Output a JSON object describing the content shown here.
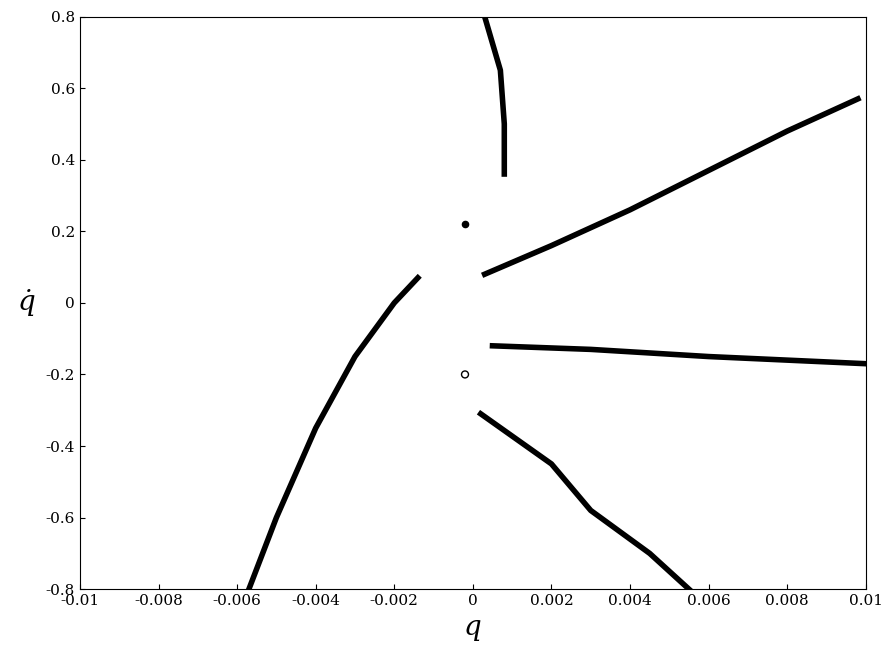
{
  "chart_data": {
    "type": "line",
    "x_label": "q",
    "y_label": "q̇",
    "xlim": [
      -0.01,
      0.01
    ],
    "ylim": [
      -0.8,
      0.8
    ],
    "xticks": [
      -0.01,
      -0.008,
      -0.006,
      -0.004,
      -0.002,
      0,
      0.002,
      0.004,
      0.006,
      0.008,
      0.01
    ],
    "yticks": [
      -0.8,
      -0.6,
      -0.4,
      -0.2,
      0,
      0.2,
      0.4,
      0.6,
      0.8
    ],
    "grid": false,
    "series": [
      {
        "type": "line",
        "color": "#000000",
        "line_style": "solid",
        "x": [
          -0.0057,
          -0.005,
          -0.004,
          -0.003,
          -0.002,
          -0.0014
        ],
        "values": [
          -0.8,
          -0.6,
          -0.35,
          -0.15,
          0.0,
          0.07
        ]
      },
      {
        "type": "line",
        "color": "#000000",
        "line_style": "solid",
        "x": [
          0.0003,
          0.002,
          0.004,
          0.006,
          0.008,
          0.0098
        ],
        "values": [
          0.08,
          0.16,
          0.26,
          0.37,
          0.48,
          0.57
        ]
      },
      {
        "type": "line",
        "color": "#000000",
        "line_style": "solid",
        "x": [
          0.0005,
          0.003,
          0.006,
          0.01
        ],
        "values": [
          -0.12,
          -0.13,
          -0.15,
          -0.17
        ]
      },
      {
        "type": "line",
        "color": "#000000",
        "line_style": "solid",
        "x": [
          0.0002,
          0.002,
          0.003,
          0.0045,
          0.0055
        ],
        "values": [
          -0.31,
          -0.45,
          -0.58,
          -0.7,
          -0.8
        ]
      },
      {
        "type": "line",
        "color": "#000000",
        "line_style": "solid",
        "x": [
          0.0003,
          0.0007,
          0.0008,
          0.0008
        ],
        "values": [
          0.8,
          0.65,
          0.5,
          0.36
        ]
      },
      {
        "type": "scatter",
        "color": "#000000",
        "marker": "filled_circle",
        "x": [
          -0.0002
        ],
        "values": [
          0.22
        ]
      },
      {
        "type": "scatter",
        "color": "#000000",
        "marker": "open_circle",
        "x": [
          -0.0002
        ],
        "values": [
          -0.2
        ]
      }
    ]
  }
}
